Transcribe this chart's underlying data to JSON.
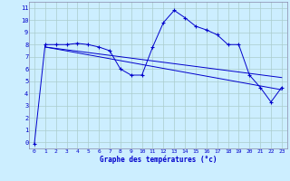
{
  "xlabel": "Graphe des températures (°c)",
  "bg_color": "#cceeff",
  "grid_color": "#aacccc",
  "line_color": "#0000cc",
  "spine_color": "#8888aa",
  "xlim": [
    -0.5,
    23.5
  ],
  "ylim": [
    -0.5,
    11.5
  ],
  "xticks": [
    0,
    1,
    2,
    3,
    4,
    5,
    6,
    7,
    8,
    9,
    10,
    11,
    12,
    13,
    14,
    15,
    16,
    17,
    18,
    19,
    20,
    21,
    22,
    23
  ],
  "yticks": [
    0,
    1,
    2,
    3,
    4,
    5,
    6,
    7,
    8,
    9,
    10,
    11
  ],
  "series1_x": [
    0,
    1,
    2,
    3,
    4,
    5,
    6,
    7,
    8,
    9,
    10,
    11,
    12,
    13,
    14,
    15,
    16,
    17,
    18,
    19,
    20,
    21,
    22,
    23
  ],
  "series1_y": [
    -0.1,
    8.0,
    8.0,
    8.0,
    8.1,
    8.0,
    7.8,
    7.5,
    6.0,
    5.5,
    5.5,
    7.8,
    9.8,
    10.8,
    10.2,
    9.5,
    9.2,
    8.8,
    8.0,
    8.0,
    5.5,
    4.5,
    3.3,
    4.5
  ],
  "series2_x": [
    1,
    23
  ],
  "series2_y": [
    7.8,
    4.3
  ],
  "series3_x": [
    1,
    23
  ],
  "series3_y": [
    7.8,
    5.3
  ]
}
